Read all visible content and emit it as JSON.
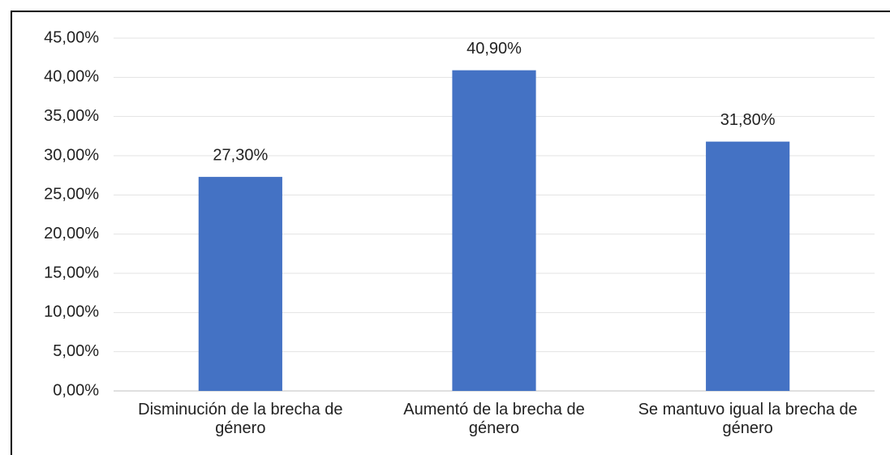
{
  "chart_data": {
    "type": "bar",
    "categories": [
      "Disminución de la brecha de género",
      "Aumentó de la brecha de género",
      "Se mantuvo igual la brecha de género"
    ],
    "values": [
      27.3,
      40.9,
      31.8
    ],
    "value_labels": [
      "27,30%",
      "40,90%",
      "31,80%"
    ],
    "color": "#4472c4",
    "ylim": [
      0,
      45
    ],
    "yticks": [
      {
        "value": 0,
        "label": "0,00%"
      },
      {
        "value": 5,
        "label": "5,00%"
      },
      {
        "value": 10,
        "label": "10,00%"
      },
      {
        "value": 15,
        "label": "15,00%"
      },
      {
        "value": 20,
        "label": "20,00%"
      },
      {
        "value": 25,
        "label": "25,00%"
      },
      {
        "value": 30,
        "label": "30,00%"
      },
      {
        "value": 35,
        "label": "35,00%"
      },
      {
        "value": 40,
        "label": "40,00%"
      },
      {
        "value": 45,
        "label": "45,00%"
      }
    ],
    "grid": true
  }
}
